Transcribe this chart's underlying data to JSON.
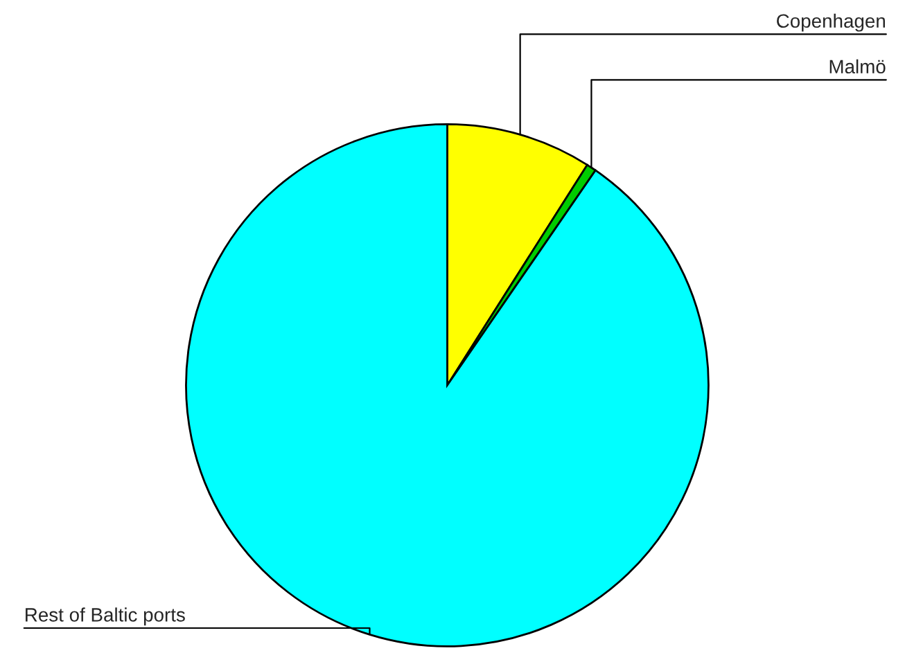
{
  "chart_data": {
    "type": "pie",
    "categories": [
      "Copenhagen",
      "Malmö",
      "Rest of Baltic ports"
    ],
    "values": [
      9.0,
      0.6,
      90.4
    ],
    "colors": [
      "#ffff00",
      "#00cc00",
      "#00ffff"
    ],
    "legend": false
  }
}
